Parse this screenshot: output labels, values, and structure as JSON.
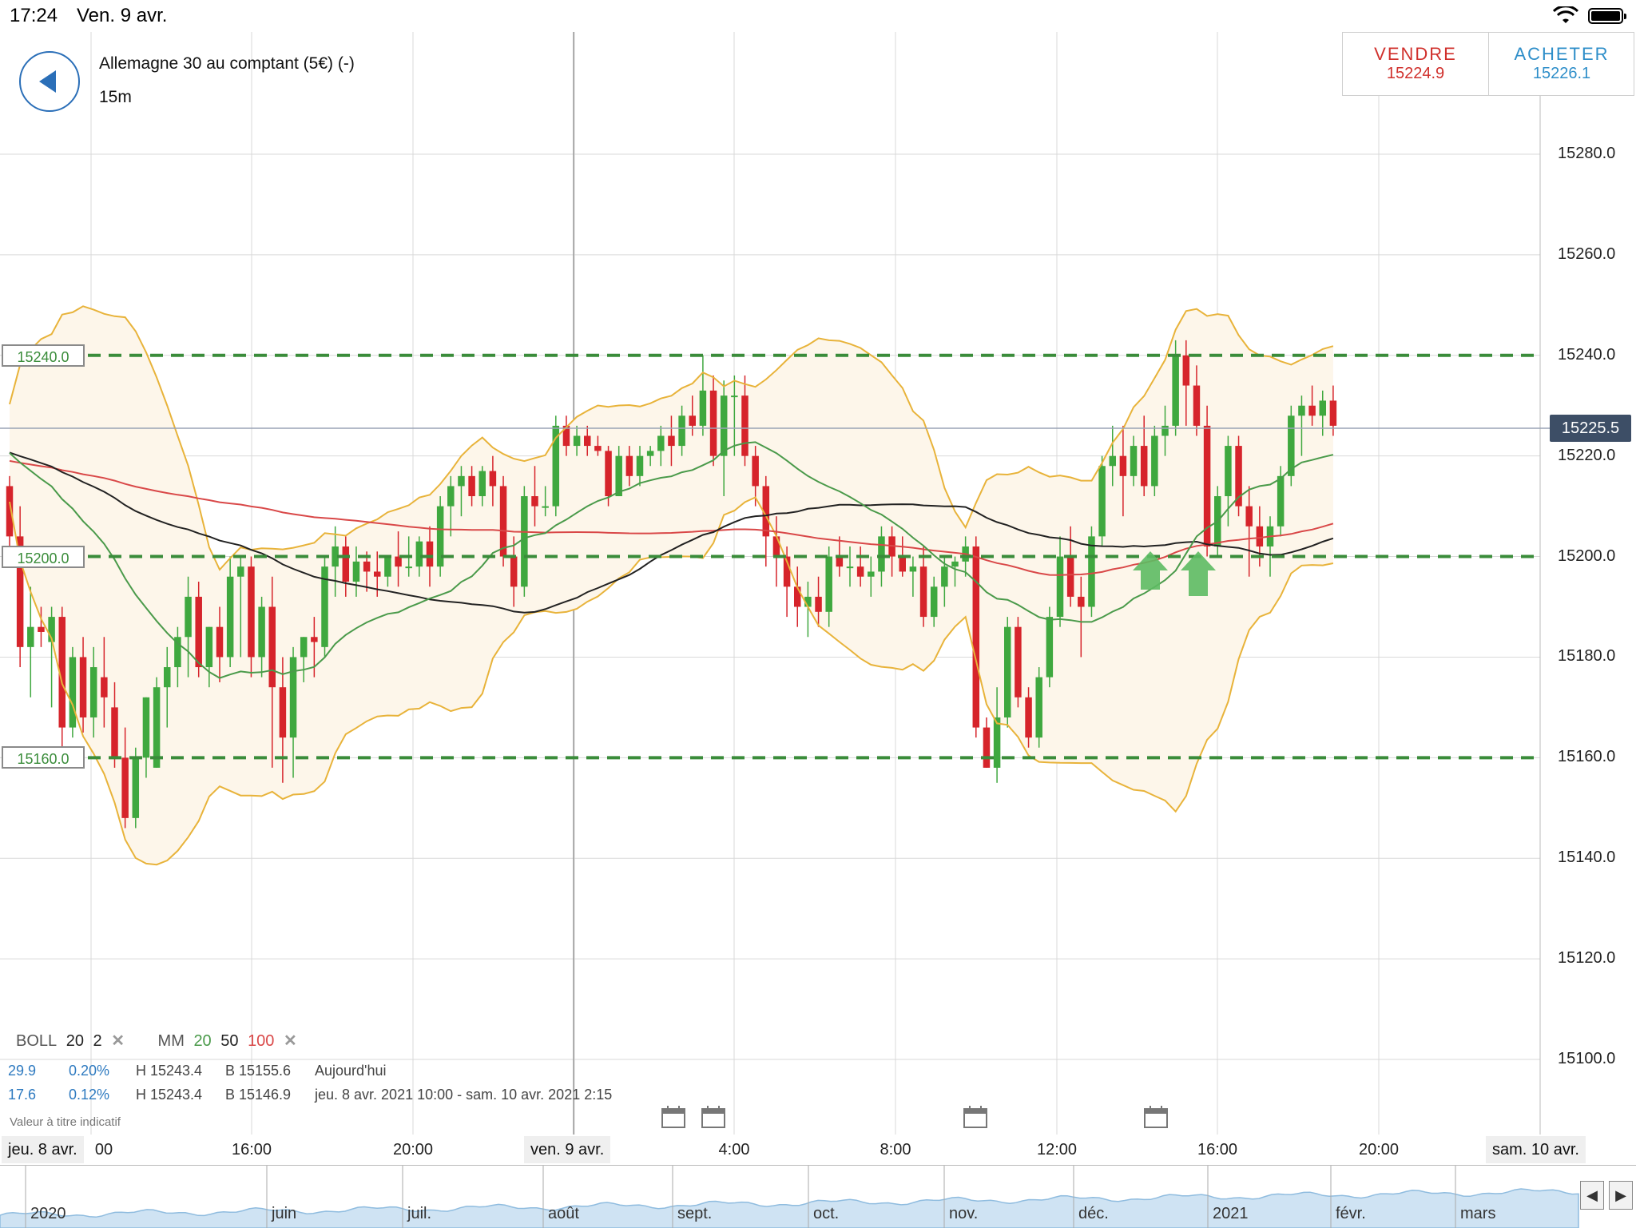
{
  "status_bar": {
    "time": "17:24",
    "date": "Ven. 9 avr."
  },
  "instrument": {
    "name": "Allemagne 30 au comptant (5€) (-)",
    "timeframe": "15m"
  },
  "trade": {
    "sell": {
      "label": "VENDRE",
      "price": "15224.9",
      "color": "#d0302c"
    },
    "buy": {
      "label": "ACHETER",
      "price": "15226.1",
      "color": "#2e8ec9"
    }
  },
  "price_axis": {
    "ticks": [
      "15280.0",
      "15260.0",
      "15240.0",
      "15220.0",
      "15200.0",
      "15180.0",
      "15160.0",
      "15140.0",
      "15120.0",
      "15100.0"
    ],
    "current_price": "15225.5"
  },
  "levels": [
    "15240.0",
    "15200.0",
    "15160.0"
  ],
  "indicators": {
    "boll": {
      "name": "BOLL",
      "period": "20",
      "stddev": "2"
    },
    "mm": {
      "name": "MM",
      "p1": "20",
      "p2": "50",
      "p3": "100"
    }
  },
  "stats": [
    {
      "change": "29.9",
      "pct": "0.20%",
      "high": "H 15243.4",
      "low": "B 15155.6",
      "period": "Aujourd'hui"
    },
    {
      "change": "17.6",
      "pct": "0.12%",
      "high": "H 15243.4",
      "low": "B 15146.9",
      "period": "jeu. 8 avr. 2021 10:00 - sam. 10 avr. 2021 2:15"
    }
  ],
  "disclaimer": "Valeur à titre indicatif",
  "time_axis": {
    "labels": [
      "00",
      "16:00",
      "20:00",
      "4:00",
      "8:00",
      "12:00",
      "16:00",
      "20:00"
    ],
    "dates": [
      "jeu. 8 avr.",
      "ven. 9 avr.",
      "sam. 10 avr."
    ]
  },
  "navigator": {
    "labels": [
      "2020",
      "juin",
      "juil.",
      "août",
      "sept.",
      "oct.",
      "nov.",
      "déc.",
      "2021",
      "févr.",
      "mars"
    ]
  },
  "colors": {
    "up": "#3fa83f",
    "down": "#d6242b",
    "boll": "#e8b33a",
    "ma20": "#4a9a4a",
    "ma50": "#222222",
    "ma100": "#d94848",
    "level": "#3a8c3a"
  },
  "chart_data": {
    "type": "candlestick",
    "y_range": [
      15100,
      15290
    ],
    "ohlc": [
      [
        15214,
        15216,
        15202,
        15204
      ],
      [
        15204,
        15210,
        15178,
        15182
      ],
      [
        15182,
        15194,
        15172,
        15186
      ],
      [
        15186,
        15190,
        15182,
        15185
      ],
      [
        15183,
        15190,
        15170,
        15188
      ],
      [
        15188,
        15190,
        15162,
        15166
      ],
      [
        15166,
        15182,
        15164,
        15180
      ],
      [
        15180,
        15184,
        15165,
        15168
      ],
      [
        15168,
        15182,
        15164,
        15178
      ],
      [
        15176,
        15184,
        15166,
        15172
      ],
      [
        15170,
        15175,
        15158,
        15160
      ],
      [
        15160,
        15166,
        15146,
        15148
      ],
      [
        15148,
        15162,
        15146,
        15160
      ],
      [
        15160,
        15172,
        15156,
        15172
      ],
      [
        15158,
        15176,
        15158,
        15174
      ],
      [
        15174,
        15182,
        15166,
        15178
      ],
      [
        15178,
        15186,
        15174,
        15184
      ],
      [
        15184,
        15196,
        15176,
        15192
      ],
      [
        15192,
        15195,
        15176,
        15178
      ],
      [
        15178,
        15186,
        15174,
        15186
      ],
      [
        15186,
        15190,
        15175,
        15180
      ],
      [
        15180,
        15200,
        15178,
        15196
      ],
      [
        15196,
        15200,
        15180,
        15198
      ],
      [
        15198,
        15200,
        15176,
        15180
      ],
      [
        15180,
        15192,
        15176,
        15190
      ],
      [
        15190,
        15196,
        15158,
        15174
      ],
      [
        15174,
        15180,
        15155,
        15164
      ],
      [
        15164,
        15182,
        15156,
        15180
      ],
      [
        15180,
        15184,
        15175,
        15184
      ],
      [
        15184,
        15188,
        15176,
        15183
      ],
      [
        15182,
        15200,
        15180,
        15198
      ],
      [
        15198,
        15206,
        15192,
        15202
      ],
      [
        15202,
        15204,
        15192,
        15195
      ],
      [
        15195,
        15202,
        15192,
        15199
      ],
      [
        15199,
        15201,
        15193,
        15197
      ],
      [
        15197,
        15201,
        15192,
        15196
      ],
      [
        15196,
        15200,
        15194,
        15200
      ],
      [
        15200,
        15205,
        15194,
        15198
      ],
      [
        15198,
        15204,
        15196,
        15198
      ],
      [
        15198,
        15204,
        15196,
        15203
      ],
      [
        15203,
        15206,
        15194,
        15198
      ],
      [
        15198,
        15212,
        15196,
        15210
      ],
      [
        15210,
        15216,
        15204,
        15214
      ],
      [
        15214,
        15218,
        15208,
        15216
      ],
      [
        15216,
        15218,
        15210,
        15212
      ],
      [
        15212,
        15218,
        15210,
        15217
      ],
      [
        15217,
        15220,
        15210,
        15214
      ],
      [
        15214,
        15216,
        15198,
        15200
      ],
      [
        15200,
        15204,
        15190,
        15194
      ],
      [
        15194,
        15214,
        15192,
        15212
      ],
      [
        15212,
        15218,
        15206,
        15210
      ],
      [
        15210,
        15214,
        15208,
        15210
      ],
      [
        15210,
        15228,
        15208,
        15226
      ],
      [
        15226,
        15228,
        15220,
        15222
      ],
      [
        15222,
        15226,
        15220,
        15224
      ],
      [
        15224,
        15226,
        15220,
        15222
      ],
      [
        15222,
        15224,
        15220,
        15221
      ],
      [
        15221,
        15222,
        15210,
        15212
      ],
      [
        15212,
        15222,
        15212,
        15220
      ],
      [
        15220,
        15222,
        15214,
        15216
      ],
      [
        15216,
        15222,
        15214,
        15220
      ],
      [
        15220,
        15222,
        15218,
        15221
      ],
      [
        15221,
        15226,
        15218,
        15224
      ],
      [
        15224,
        15228,
        15218,
        15222
      ],
      [
        15222,
        15230,
        15220,
        15228
      ],
      [
        15228,
        15232,
        15224,
        15226
      ],
      [
        15226,
        15240,
        15224,
        15233
      ],
      [
        15233,
        15236,
        15218,
        15220
      ],
      [
        15220,
        15235,
        15212,
        15232
      ],
      [
        15232,
        15236,
        15220,
        15232
      ],
      [
        15232,
        15236,
        15218,
        15220
      ],
      [
        15220,
        15222,
        15210,
        15214
      ],
      [
        15214,
        15216,
        15198,
        15204
      ],
      [
        15204,
        15208,
        15194,
        15200
      ],
      [
        15200,
        15202,
        15188,
        15194
      ],
      [
        15194,
        15198,
        15186,
        15190
      ],
      [
        15190,
        15195,
        15184,
        15192
      ],
      [
        15192,
        15196,
        15186,
        15189
      ],
      [
        15189,
        15202,
        15186,
        15200
      ],
      [
        15200,
        15204,
        15196,
        15198
      ],
      [
        15198,
        15202,
        15194,
        15198
      ],
      [
        15198,
        15202,
        15194,
        15196
      ],
      [
        15196,
        15200,
        15192,
        15197
      ],
      [
        15197,
        15206,
        15194,
        15204
      ],
      [
        15204,
        15206,
        15196,
        15200
      ],
      [
        15200,
        15204,
        15196,
        15197
      ],
      [
        15197,
        15200,
        15192,
        15198
      ],
      [
        15198,
        15202,
        15186,
        15188
      ],
      [
        15188,
        15196,
        15186,
        15194
      ],
      [
        15194,
        15200,
        15190,
        15198
      ],
      [
        15198,
        15200,
        15194,
        15199
      ],
      [
        15199,
        15204,
        15196,
        15202
      ],
      [
        15202,
        15204,
        15164,
        15166
      ],
      [
        15166,
        15168,
        15158,
        15158
      ],
      [
        15158,
        15174,
        15155,
        15168
      ],
      [
        15168,
        15188,
        15166,
        15186
      ],
      [
        15186,
        15188,
        15170,
        15172
      ],
      [
        15172,
        15174,
        15162,
        15164
      ],
      [
        15164,
        15178,
        15162,
        15176
      ],
      [
        15176,
        15190,
        15174,
        15188
      ],
      [
        15188,
        15204,
        15186,
        15200
      ],
      [
        15200,
        15206,
        15190,
        15192
      ],
      [
        15192,
        15196,
        15180,
        15190
      ],
      [
        15190,
        15206,
        15188,
        15204
      ],
      [
        15204,
        15220,
        15202,
        15218
      ],
      [
        15218,
        15226,
        15214,
        15220
      ],
      [
        15220,
        15226,
        15208,
        15216
      ],
      [
        15216,
        15224,
        15214,
        15222
      ],
      [
        15222,
        15228,
        15212,
        15214
      ],
      [
        15214,
        15226,
        15212,
        15224
      ],
      [
        15224,
        15230,
        15220,
        15226
      ],
      [
        15226,
        15243,
        15224,
        15240
      ],
      [
        15240,
        15243,
        15226,
        15234
      ],
      [
        15234,
        15238,
        15224,
        15226
      ],
      [
        15226,
        15230,
        15200,
        15202
      ],
      [
        15202,
        15214,
        15200,
        15212
      ],
      [
        15212,
        15224,
        15206,
        15222
      ],
      [
        15222,
        15224,
        15208,
        15210
      ],
      [
        15210,
        15214,
        15196,
        15206
      ],
      [
        15206,
        15210,
        15198,
        15202
      ],
      [
        15202,
        15208,
        15196,
        15206
      ],
      [
        15206,
        15218,
        15204,
        15216
      ],
      [
        15216,
        15230,
        15214,
        15228
      ],
      [
        15228,
        15232,
        15220,
        15230
      ],
      [
        15230,
        15234,
        15226,
        15228
      ],
      [
        15228,
        15233,
        15224,
        15231
      ],
      [
        15231,
        15234,
        15224,
        15226
      ]
    ]
  }
}
